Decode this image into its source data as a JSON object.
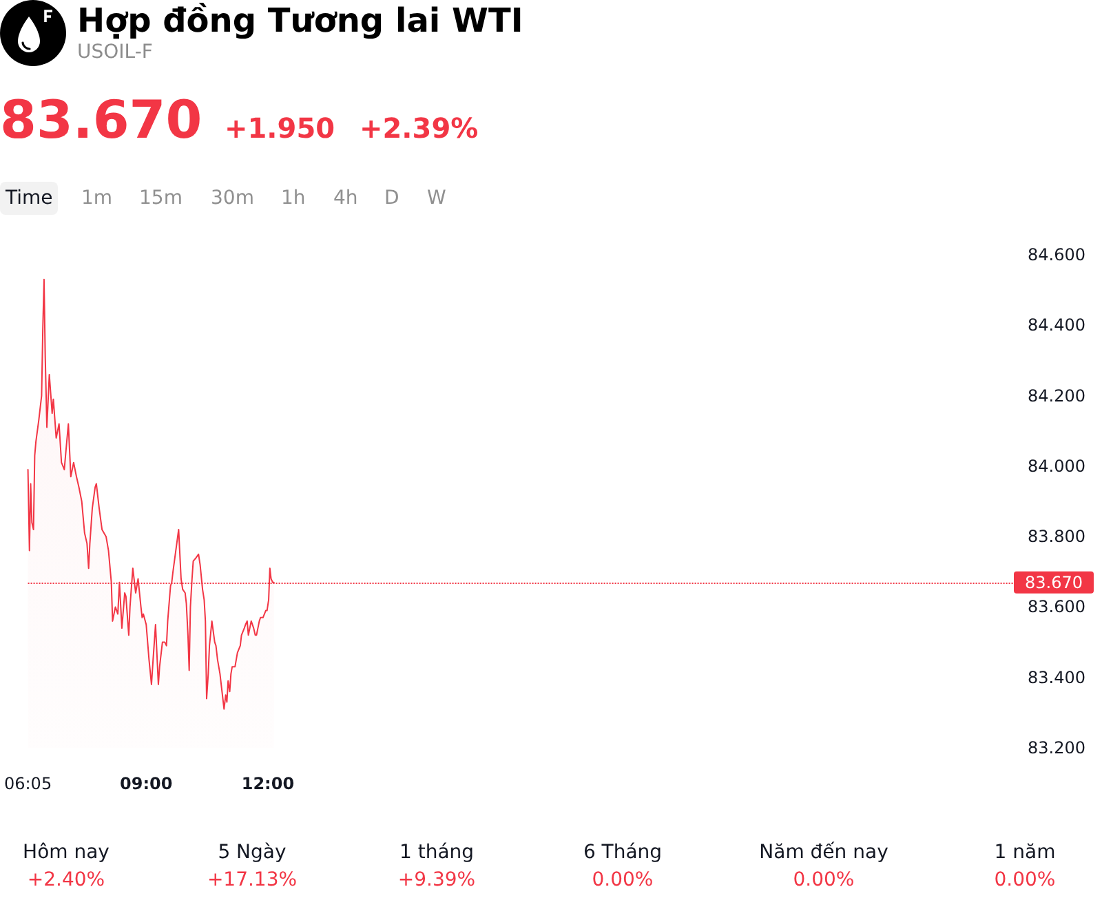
{
  "chart_data": {
    "type": "area",
    "title": "Hợp đồng Tương lai WTI",
    "subtitle": "USOIL-F",
    "annotations": [
      "83.670",
      "+1.950",
      "+2.39%",
      "Time",
      "1m",
      "15m",
      "30m",
      "1h",
      "4h",
      "D",
      "W",
      "Hôm nay",
      "+2.40%",
      "5 Ngày",
      "+17.13%",
      "1 tháng",
      "+9.39%",
      "6 Tháng",
      "0.00%",
      "Năm đến nay",
      "0.00%",
      "1 năm",
      "0.00%"
    ],
    "x": [
      6.0833,
      6.12,
      6.15,
      6.18,
      6.22,
      6.25,
      6.28,
      6.35,
      6.42,
      6.45,
      6.48,
      6.51,
      6.55,
      6.61,
      6.68,
      6.71,
      6.78,
      6.85,
      6.91,
      6.98,
      7.01,
      7.08,
      7.14,
      7.21,
      7.28,
      7.34,
      7.41,
      7.48,
      7.54,
      7.58,
      7.61,
      7.67,
      7.74,
      7.77,
      7.84,
      7.91,
      8.01,
      8.07,
      8.14,
      8.17,
      8.24,
      8.3,
      8.34,
      8.4,
      8.47,
      8.5,
      8.57,
      8.6,
      8.67,
      8.74,
      8.8,
      8.87,
      8.9,
      8.93,
      9.0,
      9.07,
      9.13,
      9.17,
      9.23,
      9.3,
      9.33,
      9.4,
      9.46,
      9.5,
      9.53,
      9.6,
      9.63,
      9.66,
      9.73,
      9.8,
      9.86,
      9.9,
      9.96,
      9.99,
      10.03,
      10.06,
      10.09,
      10.13,
      10.16,
      10.23,
      10.29,
      10.33,
      10.39,
      10.43,
      10.46,
      10.49,
      10.53,
      10.56,
      10.62,
      10.69,
      10.72,
      10.76,
      10.82,
      10.86,
      10.92,
      10.96,
      10.99,
      11.02,
      11.06,
      11.09,
      11.12,
      11.19,
      11.22,
      11.25,
      11.32,
      11.35,
      11.42,
      11.45,
      11.49,
      11.52,
      11.59,
      11.65,
      11.69,
      11.72,
      11.79,
      11.82,
      11.88,
      11.95,
      11.98,
      12.02,
      12.05,
      12.08,
      12.12,
      12.15
    ],
    "values": [
      83.99,
      83.76,
      83.95,
      83.84,
      83.82,
      84.03,
      84.07,
      84.13,
      84.2,
      84.39,
      84.53,
      84.31,
      84.11,
      84.26,
      84.15,
      84.19,
      84.08,
      84.12,
      84.01,
      83.99,
      84.03,
      84.12,
      83.97,
      84.01,
      83.97,
      83.94,
      83.9,
      83.81,
      83.78,
      83.71,
      83.78,
      83.88,
      83.94,
      83.95,
      83.88,
      83.82,
      83.8,
      83.76,
      83.67,
      83.56,
      83.6,
      83.58,
      83.67,
      83.54,
      83.64,
      83.63,
      83.52,
      83.6,
      83.71,
      83.64,
      83.68,
      83.6,
      83.57,
      83.58,
      83.55,
      83.45,
      83.38,
      83.45,
      83.55,
      83.38,
      83.43,
      83.5,
      83.5,
      83.49,
      83.56,
      83.66,
      83.67,
      83.7,
      83.76,
      83.82,
      83.68,
      83.65,
      83.64,
      83.61,
      83.52,
      83.42,
      83.6,
      83.68,
      83.73,
      83.74,
      83.75,
      83.72,
      83.65,
      83.62,
      83.56,
      83.34,
      83.41,
      83.49,
      83.56,
      83.5,
      83.49,
      83.45,
      83.41,
      83.37,
      83.31,
      83.35,
      83.33,
      83.39,
      83.36,
      83.41,
      83.43,
      83.43,
      83.45,
      83.47,
      83.49,
      83.52,
      83.54,
      83.55,
      83.56,
      83.52,
      83.56,
      83.54,
      83.52,
      83.52,
      83.56,
      83.57,
      83.57,
      83.59,
      83.59,
      83.62,
      83.71,
      83.68,
      83.67,
      83.67
    ],
    "color": "#f23645",
    "marker": "none",
    "grid": false,
    "xlim": [
      6.0833,
      30.4
    ],
    "xticks": [
      {
        "value": 6.0833,
        "label": "06:05"
      },
      {
        "value": 9,
        "label": "09:00"
      },
      {
        "value": 12,
        "label": "12:00"
      }
    ],
    "ylim": [
      83.2,
      84.6
    ],
    "yticks": [
      {
        "value": 83.2,
        "label": "83.200"
      },
      {
        "value": 83.4,
        "label": "83.400"
      },
      {
        "value": 83.6,
        "label": "83.600"
      },
      {
        "value": 83.8,
        "label": "83.800"
      },
      {
        "value": 84.0,
        "label": "84.000"
      },
      {
        "value": 84.2,
        "label": "84.200"
      },
      {
        "value": 84.4,
        "label": "84.400"
      },
      {
        "value": 84.6,
        "label": "84.600"
      }
    ],
    "ref_lines": [
      {
        "axis": "y",
        "value": 83.67,
        "label": "83.670",
        "color": "#f23645",
        "line_style": "dotted"
      }
    ]
  }
}
